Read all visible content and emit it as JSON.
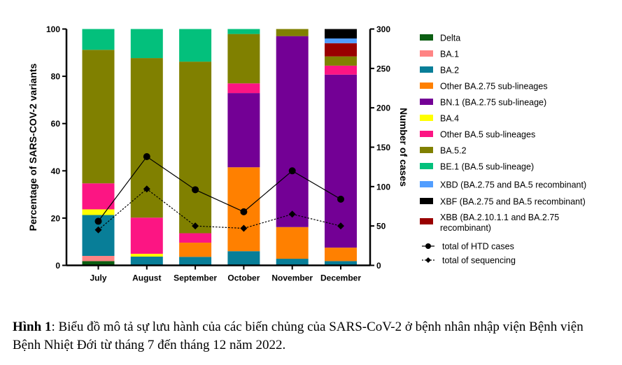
{
  "chart_data": {
    "type": "bar",
    "stacked": true,
    "categories": [
      "July",
      "August",
      "September",
      "October",
      "November",
      "December"
    ],
    "ylabel": "Percentage of SARS-COV-2 variants",
    "ylabel_right": "Number of cases",
    "ylim": [
      0,
      100
    ],
    "ylim_right": [
      0,
      300
    ],
    "yticks": [
      0,
      20,
      40,
      60,
      80,
      100
    ],
    "yticks_right": [
      0,
      50,
      100,
      150,
      200,
      250,
      300
    ],
    "grid": false,
    "legend_position": "right",
    "series": [
      {
        "name": "Delta",
        "color": "#0b5e12",
        "values": [
          1.8,
          0,
          0,
          0,
          0,
          0
        ]
      },
      {
        "name": "BA.1",
        "color": "#ff8484",
        "values": [
          2.2,
          0,
          0,
          0,
          0,
          0
        ]
      },
      {
        "name": "BA.2",
        "color": "#087e98",
        "values": [
          17.3,
          3.7,
          3.6,
          6.0,
          2.8,
          1.8
        ]
      },
      {
        "name": "Other BA.2.75 sub-lineages",
        "color": "#ff8000",
        "values": [
          0,
          0,
          6.0,
          35.5,
          13.4,
          5.7
        ]
      },
      {
        "name": "BN.1 (BA.2.75 sub-lineage)",
        "color": "#730095",
        "values": [
          0,
          0,
          0,
          31.4,
          80.8,
          73.2
        ]
      },
      {
        "name": "BA.4",
        "color": "#ffff00",
        "values": [
          2.4,
          1.2,
          0,
          0,
          0,
          0
        ]
      },
      {
        "name": "Other BA.5 sub-lineages",
        "color": "#fc1583",
        "values": [
          11.0,
          15.3,
          4.0,
          4.1,
          0,
          3.8
        ]
      },
      {
        "name": "BA.5.2",
        "color": "#808000",
        "values": [
          56.5,
          67.5,
          72.6,
          20.9,
          3.0,
          3.9
        ]
      },
      {
        "name": "BE.1 (BA.5 sub-lineage)",
        "color": "#03c07c",
        "values": [
          8.8,
          12.3,
          13.8,
          2.1,
          0,
          0
        ]
      },
      {
        "name": "XBD (BA.2.75 and BA.5 recombinant)",
        "color": "#529eff",
        "values": [
          0,
          0,
          0,
          0,
          0,
          2.0
        ]
      },
      {
        "name": "XBF (BA.2.75 and BA.5 recombinant)",
        "color": "#000000",
        "values": [
          0,
          0,
          0,
          0,
          0,
          4.0
        ]
      },
      {
        "name": "XBB (BA.2.10.1.1 and BA.2.75 recombinant)",
        "color": "#990000",
        "values": [
          0,
          0,
          0,
          0,
          0,
          5.6
        ]
      }
    ],
    "stack_order": [
      "Delta",
      "BA.1",
      "BA.2",
      "Other BA.2.75 sub-lineages",
      "BN.1 (BA.2.75 sub-lineage)",
      "BA.4",
      "Other BA.5 sub-lineages",
      "BA.5.2",
      "BE.1 (BA.5 sub-lineage)",
      "XBB (BA.2.10.1.1 and BA.2.75 recombinant)",
      "XBD (BA.2.75 and BA.5 recombinant)",
      "XBF (BA.2.75 and BA.5 recombinant)"
    ],
    "lines": [
      {
        "name": "total of HTD cases",
        "axis": "right",
        "style": "solid",
        "marker": "circle",
        "values": [
          56,
          138,
          96,
          68,
          120,
          84
        ]
      },
      {
        "name": "total of sequencing",
        "axis": "right",
        "style": "dotted",
        "marker": "diamond",
        "values": [
          45,
          97,
          50,
          47,
          65,
          50
        ]
      }
    ]
  },
  "caption": {
    "label": "Hình 1",
    "text": ": Biểu đồ mô tả sự lưu hành của các biến chủng của SARS-CoV-2 ở bệnh nhân nhập viện Bệnh viện Bệnh Nhiệt Đới từ tháng 7 đến tháng 12 năm 2022."
  }
}
